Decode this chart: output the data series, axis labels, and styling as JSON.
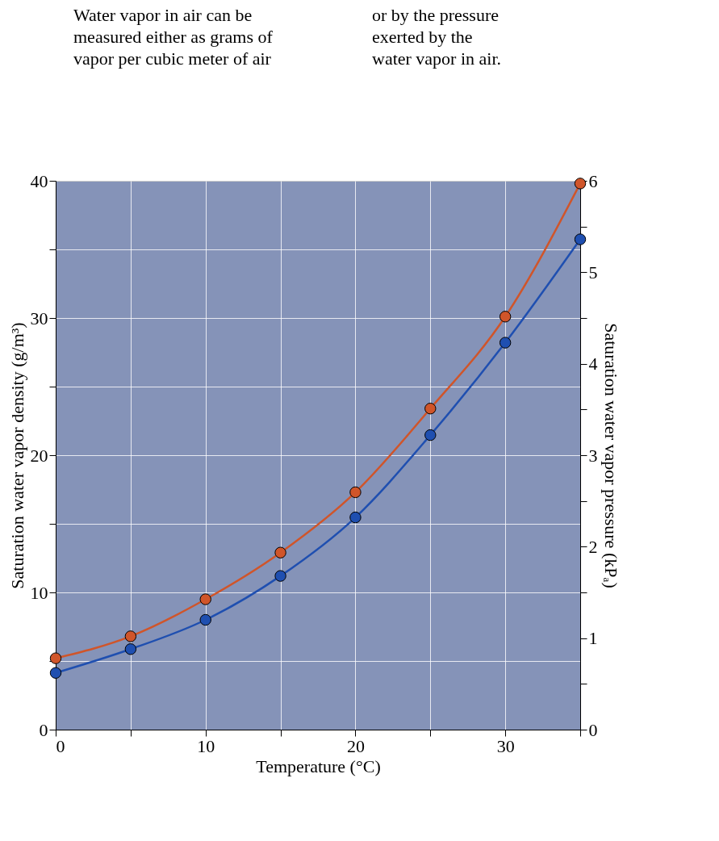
{
  "chart_data": {
    "type": "line",
    "xlabel": "Temperature (°C)",
    "ylabel": "Saturation water vapor density (g/m³)",
    "y2label": "Saturation water vapor pressure (kPₐ)",
    "x": [
      0,
      5,
      10,
      15,
      20,
      25,
      30,
      35
    ],
    "series": [
      {
        "color": "#d0552a",
        "values": [
          5.2,
          6.8,
          9.5,
          12.9,
          17.3,
          23.4,
          30.1,
          39.8
        ]
      },
      {
        "color": "#1f4fb0",
        "axis": "y2",
        "values": [
          0.62,
          0.88,
          1.2,
          1.68,
          2.32,
          3.22,
          4.23,
          5.36
        ]
      }
    ],
    "xlim": [
      0,
      35
    ],
    "xticks": [
      0,
      {
        "value": 5,
        "label": null
      },
      10,
      {
        "value": 15,
        "label": null
      },
      20,
      {
        "value": 25,
        "label": null
      },
      30,
      {
        "value": 35,
        "label": null
      }
    ],
    "ylim": [
      0,
      40
    ],
    "yticks": [
      0,
      {
        "value": 5,
        "label": null
      },
      10,
      {
        "value": 15,
        "label": null
      },
      20,
      {
        "value": 25,
        "label": null
      },
      30,
      {
        "value": 35,
        "label": null
      },
      40
    ],
    "y2lim": [
      0,
      6
    ],
    "y2ticks": [
      0,
      {
        "value": 0.5,
        "label": null
      },
      1,
      {
        "value": 1.5,
        "label": null
      },
      2,
      {
        "value": 2.5,
        "label": null
      },
      3,
      {
        "value": 3.5,
        "label": null
      },
      4,
      {
        "value": 4.5,
        "label": null
      },
      5,
      {
        "value": 5.5,
        "label": null
      },
      6
    ],
    "grid": true,
    "marker": "circle",
    "line_style": "solid",
    "annotations": [
      "Water vapor in air can be\nmeasured either as grams of\nvapor per cubic meter of air",
      "or by the pressure\nexerted by the\nwater vapor in air."
    ]
  }
}
